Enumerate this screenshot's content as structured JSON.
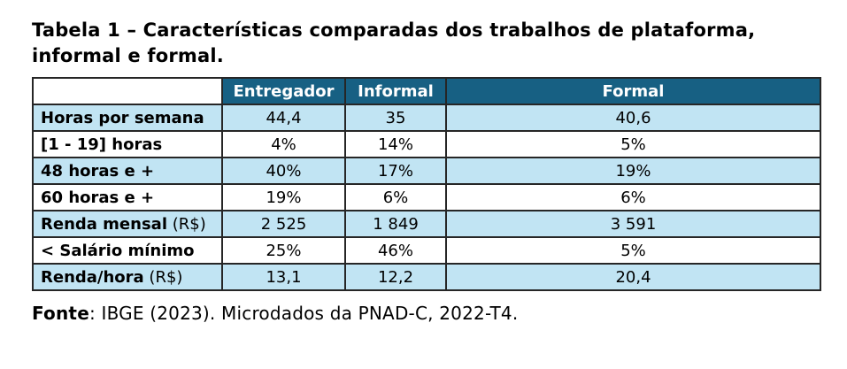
{
  "title": {
    "line1": "Tabela 1 – Características comparadas dos trabalhos de plataforma,",
    "line2": "informal e formal."
  },
  "table": {
    "columns": [
      "Entregador",
      "Informal",
      "Formal"
    ],
    "rows": [
      {
        "label": "Horas por semana",
        "label_suffix": "",
        "values": [
          "44,4",
          "35",
          "40,6"
        ]
      },
      {
        "label": "[1 - 19] horas",
        "label_suffix": "",
        "values": [
          "4%",
          "14%",
          "5%"
        ]
      },
      {
        "label": "48 horas e +",
        "label_suffix": "",
        "values": [
          "40%",
          "17%",
          "19%"
        ]
      },
      {
        "label": "60 horas e +",
        "label_suffix": "",
        "values": [
          "19%",
          "6%",
          "6%"
        ]
      },
      {
        "label": "Renda mensal",
        "label_suffix": " (R$)",
        "values": [
          "2 525",
          "1 849",
          "3 591"
        ]
      },
      {
        "label": "< Salário mínimo",
        "label_suffix": "",
        "values": [
          "25%",
          "46%",
          "5%"
        ]
      },
      {
        "label": "Renda/hora",
        "label_suffix": " (R$)",
        "values": [
          "13,1",
          "12,2",
          "20,4"
        ]
      }
    ]
  },
  "footer": {
    "label": "Fonte",
    "text": ": IBGE (2023). Microdados da PNAD-C, 2022-T4."
  },
  "theme": {
    "header_bg": "#176083",
    "header_text": "#ffffff",
    "shaded_row_bg": "#c1e4f3",
    "border_color": "#262626",
    "text_color": "#000000",
    "page_bg": "#ffffff"
  }
}
